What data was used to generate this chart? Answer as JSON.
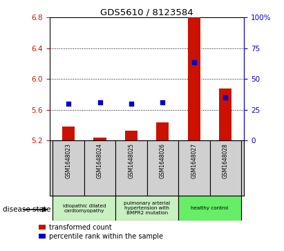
{
  "title": "GDS5610 / 8123584",
  "samples": [
    "GSM1648023",
    "GSM1648024",
    "GSM1648025",
    "GSM1648026",
    "GSM1648027",
    "GSM1648028"
  ],
  "red_values": [
    5.38,
    5.24,
    5.33,
    5.44,
    6.81,
    5.88
  ],
  "blue_values": [
    5.68,
    5.7,
    5.68,
    5.7,
    6.22,
    5.76
  ],
  "ylim": [
    5.2,
    6.8
  ],
  "yticks": [
    5.2,
    5.6,
    6.0,
    6.4,
    6.8
  ],
  "y2ticks": [
    0,
    25,
    50,
    75,
    100
  ],
  "y2ticklabels": [
    "0",
    "25",
    "50",
    "75",
    "100%"
  ],
  "bar_color": "#cc1100",
  "dot_color": "#0000cc",
  "bar_bottom": 5.2,
  "legend_labels": [
    "transformed count",
    "percentile rank within the sample"
  ],
  "disease_state_label": "disease state",
  "tick_color_left": "#cc1100",
  "tick_color_right": "#0000cc",
  "group_defs": [
    [
      0,
      1,
      "idiopathic dilated\ncardiomyopathy",
      "#c8f0c0"
    ],
    [
      2,
      3,
      "pulmonary arterial\nhypertension with\nBMPR2 mutation",
      "#c8f0c0"
    ],
    [
      4,
      5,
      "healthy control",
      "#66ee66"
    ]
  ]
}
